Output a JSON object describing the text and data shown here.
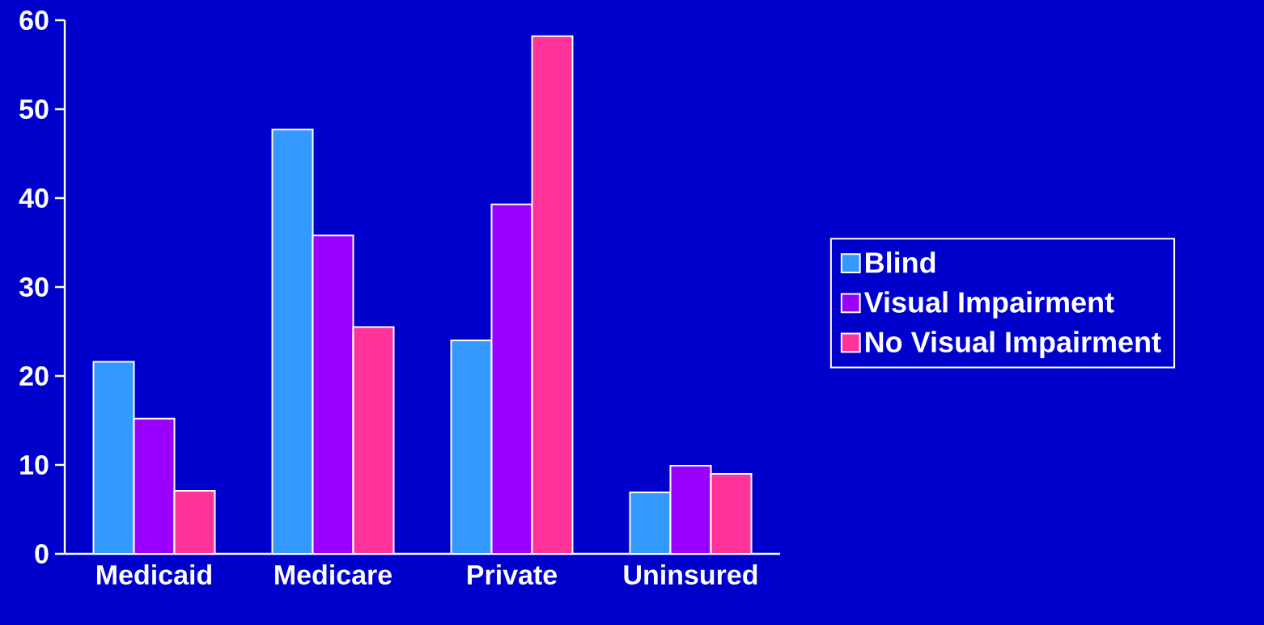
{
  "chart_data": {
    "type": "bar",
    "categories": [
      "Medicaid",
      "Medicare",
      "Private",
      "Uninsured"
    ],
    "series": [
      {
        "name": "Blind",
        "color": "#3399ff",
        "values": [
          21.6,
          47.7,
          24.0,
          6.9
        ]
      },
      {
        "name": "Visual Impairment",
        "color": "#9900ff",
        "values": [
          15.2,
          35.8,
          39.3,
          9.9
        ]
      },
      {
        "name": "No Visual Impairment",
        "color": "#ff3399",
        "values": [
          7.1,
          25.5,
          58.2,
          9.0
        ]
      }
    ],
    "ylim": [
      0,
      60
    ],
    "yticks": [
      0,
      10,
      20,
      30,
      40,
      50,
      60
    ],
    "legend": "right"
  }
}
